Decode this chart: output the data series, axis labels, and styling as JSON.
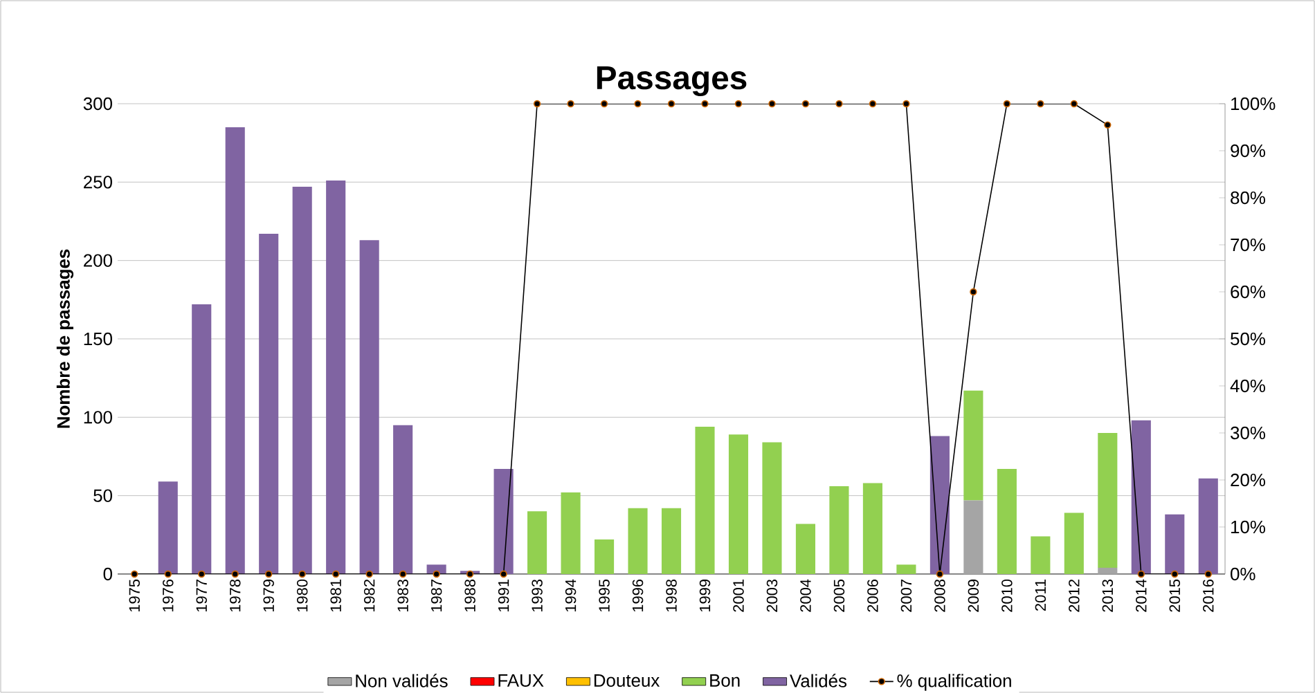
{
  "chart_data": {
    "type": "bar",
    "stacked": true,
    "title": "Passages",
    "ylabel": "Nombre de passages",
    "categories": [
      "1975",
      "1976",
      "1977",
      "1978",
      "1979",
      "1980",
      "1981",
      "1982",
      "1983",
      "1987",
      "1988",
      "1991",
      "1993",
      "1994",
      "1995",
      "1996",
      "1998",
      "1999",
      "2001",
      "2003",
      "2004",
      "2005",
      "2006",
      "2007",
      "2008",
      "2009",
      "2010",
      "2011",
      "2012",
      "2013",
      "2014",
      "2015",
      "2016"
    ],
    "ylim": [
      0,
      300
    ],
    "yticks": [
      0,
      50,
      100,
      150,
      200,
      250,
      300
    ],
    "y2lim": [
      0,
      100
    ],
    "y2ticks": [
      {
        "value": 0,
        "label": "0%"
      },
      {
        "value": 10,
        "label": "10%"
      },
      {
        "value": 20,
        "label": "20%"
      },
      {
        "value": 30,
        "label": "30%"
      },
      {
        "value": 40,
        "label": "40%"
      },
      {
        "value": 50,
        "label": "50%"
      },
      {
        "value": 60,
        "label": "60%"
      },
      {
        "value": 70,
        "label": "70%"
      },
      {
        "value": 80,
        "label": "80%"
      },
      {
        "value": 90,
        "label": "90%"
      },
      {
        "value": 100,
        "label": "100%"
      }
    ],
    "grid": "y",
    "legend": "bottom",
    "marker": "circle",
    "series": [
      {
        "name": "Non validés",
        "color": "#a5a5a5",
        "values": [
          0,
          0,
          0,
          0,
          0,
          0,
          0,
          0,
          0,
          0,
          0,
          0,
          0,
          0,
          0,
          0,
          0,
          0,
          0,
          0,
          0,
          0,
          0,
          0,
          0,
          47,
          0,
          0,
          0,
          4,
          0,
          0,
          0
        ]
      },
      {
        "name": "FAUX",
        "color": "#ff0000",
        "values": [
          0,
          0,
          0,
          0,
          0,
          0,
          0,
          0,
          0,
          0,
          0,
          0,
          0,
          0,
          0,
          0,
          0,
          0,
          0,
          0,
          0,
          0,
          0,
          0,
          0,
          0,
          0,
          0,
          0,
          0,
          0,
          0,
          0
        ]
      },
      {
        "name": "Douteux",
        "color": "#ffc000",
        "values": [
          0,
          0,
          0,
          0,
          0,
          0,
          0,
          0,
          0,
          0,
          0,
          0,
          0,
          0,
          0,
          0,
          0,
          0,
          0,
          0,
          0,
          0,
          0,
          0,
          0,
          0,
          0,
          0,
          0,
          0,
          0,
          0,
          0
        ]
      },
      {
        "name": "Bon",
        "color": "#92d050",
        "values": [
          0,
          0,
          0,
          0,
          0,
          0,
          0,
          0,
          0,
          0,
          0,
          0,
          40,
          52,
          22,
          42,
          42,
          94,
          89,
          84,
          32,
          56,
          58,
          6,
          0,
          70,
          67,
          24,
          39,
          86,
          0,
          0,
          0
        ]
      },
      {
        "name": "Validés",
        "color": "#8064a2",
        "values": [
          0,
          59,
          172,
          285,
          217,
          247,
          251,
          213,
          95,
          6,
          2,
          67,
          0,
          0,
          0,
          0,
          0,
          0,
          0,
          0,
          0,
          0,
          0,
          0,
          88,
          0,
          0,
          0,
          0,
          0,
          98,
          38,
          61
        ]
      },
      {
        "name": "% qualification",
        "type": "line",
        "axis": "y2",
        "color": "#000000",
        "values": [
          0,
          0,
          0,
          0,
          0,
          0,
          0,
          0,
          0,
          0,
          0,
          0,
          100,
          100,
          100,
          100,
          100,
          100,
          100,
          100,
          100,
          100,
          100,
          100,
          0,
          60,
          100,
          100,
          100,
          95.5,
          0,
          0,
          0
        ]
      }
    ]
  }
}
